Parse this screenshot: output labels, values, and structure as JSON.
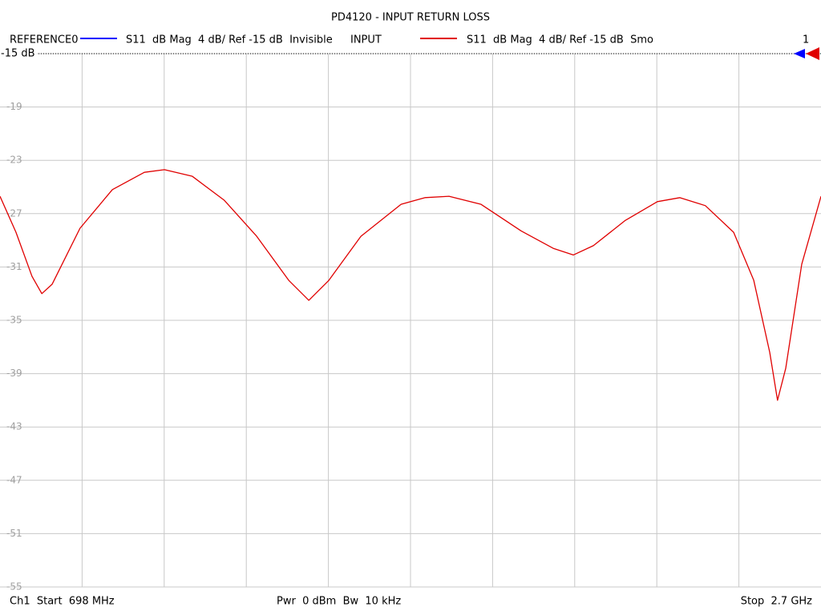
{
  "chart_data": {
    "type": "line",
    "title": "PD4120 - INPUT RETURN LOSS",
    "reference_trace": {
      "name": "REFERENCE0",
      "description": "S11  dB Mag  4 dB/ Ref -15 dB  Invisible",
      "color": "#0000ff"
    },
    "series": [
      {
        "name": "INPUT",
        "description": "S11  dB Mag  4 dB/ Ref -15 dB  Smo",
        "color": "#e00000",
        "values": [
          -25.7,
          -28.4,
          -31.7,
          -33.0,
          -32.3,
          -28.1,
          -25.2,
          -23.9,
          -23.7,
          -24.2,
          -26.0,
          -28.7,
          -32.0,
          -33.5,
          -32.0,
          -28.7,
          -26.3,
          -25.8,
          -25.7,
          -26.3,
          -28.3,
          -29.6,
          -30.1,
          -29.4,
          -27.5,
          -26.1,
          -25.8,
          -26.4,
          -28.4,
          -32.0,
          -37.4,
          -41.0,
          -38.6,
          -30.8,
          -25.7
        ]
      }
    ],
    "x": [
      698,
      737,
      776,
      800,
      825,
      893,
      972,
      1050,
      1099,
      1167,
      1245,
      1324,
      1402,
      1451,
      1500,
      1578,
      1676,
      1734,
      1793,
      1871,
      1969,
      2047,
      2096,
      2145,
      2223,
      2301,
      2356,
      2418,
      2487,
      2536,
      2575,
      2594,
      2614,
      2653,
      2700
    ],
    "xlim": [
      698,
      2700
    ],
    "xgrid": [
      898.2,
      1098.4,
      1298.6,
      1498.8,
      1699,
      1899.2,
      2099.4,
      2299.6,
      2499.8
    ],
    "ylim": [
      -15,
      -55
    ],
    "yticks": [
      -15,
      -19,
      -23,
      -27,
      -31,
      -35,
      -39,
      -43,
      -47,
      -51,
      -55
    ],
    "grid": true,
    "reference_value": -15,
    "reference_label": "-15 dB",
    "channel_marker": "1",
    "footer": {
      "start": "Ch1  Start  698 MHz",
      "power": "Pwr  0 dBm  Bw  10 kHz",
      "stop": "Stop  2.7 GHz"
    }
  }
}
